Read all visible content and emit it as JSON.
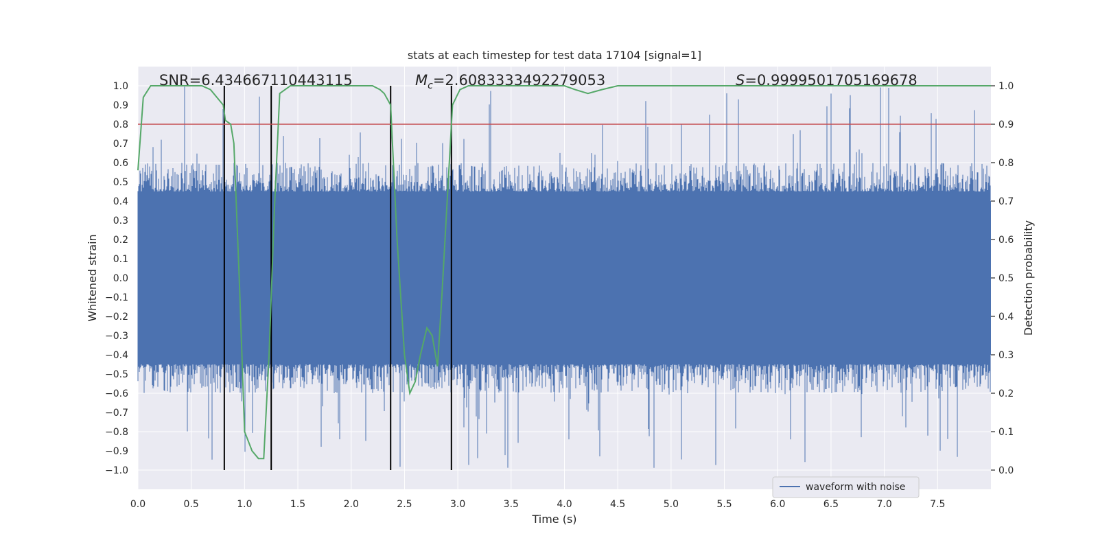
{
  "chart_data": {
    "type": "line",
    "title": "stats at each timestep for test data 17104 [signal=1]",
    "xlabel": "Time (s)",
    "ylabel_left": "Whitened strain",
    "ylabel_right": "Detection probability",
    "xlim": [
      0.0,
      8.0
    ],
    "ylim_left": [
      -1.1,
      1.1
    ],
    "ylim_right": [
      -0.05,
      1.05
    ],
    "x_ticks": [
      "0.0",
      "0.5",
      "1.0",
      "1.5",
      "2.0",
      "2.5",
      "3.0",
      "3.5",
      "4.0",
      "4.5",
      "5.0",
      "5.5",
      "6.0",
      "6.5",
      "7.0",
      "7.5"
    ],
    "y_ticks_left": [
      "1.0",
      "0.9",
      "0.8",
      "0.7",
      "0.6",
      "0.5",
      "0.4",
      "0.3",
      "0.2",
      "0.1",
      "0.0",
      "−0.1",
      "−0.2",
      "−0.3",
      "−0.4",
      "−0.5",
      "−0.6",
      "−0.7",
      "−0.8",
      "−0.9",
      "−1.0"
    ],
    "y_ticks_right": [
      "1.0",
      "0.9",
      "0.8",
      "0.7",
      "0.6",
      "0.5",
      "0.4",
      "0.3",
      "0.2",
      "0.1",
      "0.0"
    ],
    "grid": true,
    "legend_position": "lower-right",
    "colors": {
      "waveform": "#4c72b0",
      "probability": "#55a868",
      "threshold": "#c44e52",
      "markers": "#000000",
      "background": "#eaeaf2",
      "grid": "#ffffff"
    },
    "annotations": {
      "snr": "SNR=6.434667110443115",
      "mc_symbol": "M",
      "mc_subscript": "c",
      "mc_value": "=2.6083333492279053",
      "s_symbol": "S",
      "s_value": "=0.9999501705169678"
    },
    "series": [
      {
        "name": "waveform with noise",
        "kind": "noise",
        "axis": "left",
        "envelope_core": 0.4,
        "spike_max_abs": 1.0
      },
      {
        "name": "",
        "axis": "right",
        "x": [
          0.0,
          0.05,
          0.12,
          0.2,
          0.4,
          0.6,
          0.68,
          0.8,
          0.82,
          0.87,
          0.9,
          0.95,
          1.0,
          1.07,
          1.13,
          1.18,
          1.23,
          1.28,
          1.33,
          1.43,
          1.6,
          2.0,
          2.2,
          2.27,
          2.31,
          2.37,
          2.43,
          2.5,
          2.55,
          2.6,
          2.65,
          2.71,
          2.76,
          2.81,
          2.85,
          2.9,
          2.95,
          3.02,
          3.1,
          3.3,
          3.6,
          4.0,
          4.1,
          4.22,
          4.35,
          4.5,
          5.0,
          5.35,
          5.5,
          6.0,
          7.0,
          8.0
        ],
        "y": [
          0.78,
          0.97,
          1.0,
          1.0,
          1.0,
          1.0,
          0.99,
          0.95,
          0.91,
          0.9,
          0.85,
          0.5,
          0.1,
          0.05,
          0.03,
          0.03,
          0.3,
          0.68,
          0.98,
          1.0,
          1.0,
          1.0,
          1.0,
          0.99,
          0.98,
          0.95,
          0.6,
          0.3,
          0.2,
          0.23,
          0.3,
          0.37,
          0.35,
          0.27,
          0.45,
          0.7,
          0.95,
          0.99,
          1.0,
          1.0,
          1.0,
          1.0,
          0.99,
          0.98,
          0.99,
          1.0,
          1.0,
          1.0,
          1.0,
          1.0,
          1.0,
          1.0
        ]
      }
    ],
    "threshold": {
      "axis": "right",
      "value": 0.9
    },
    "vertical_markers": [
      {
        "x": 0.81,
        "y_from": -1.0,
        "y_to": 1.0
      },
      {
        "x": 1.25,
        "y_from": -1.0,
        "y_to": 1.0
      },
      {
        "x": 2.37,
        "y_from": -1.0,
        "y_to": 1.0
      },
      {
        "x": 2.94,
        "y_from": -1.0,
        "y_to": 1.0
      }
    ],
    "legend": [
      "waveform with noise"
    ]
  }
}
